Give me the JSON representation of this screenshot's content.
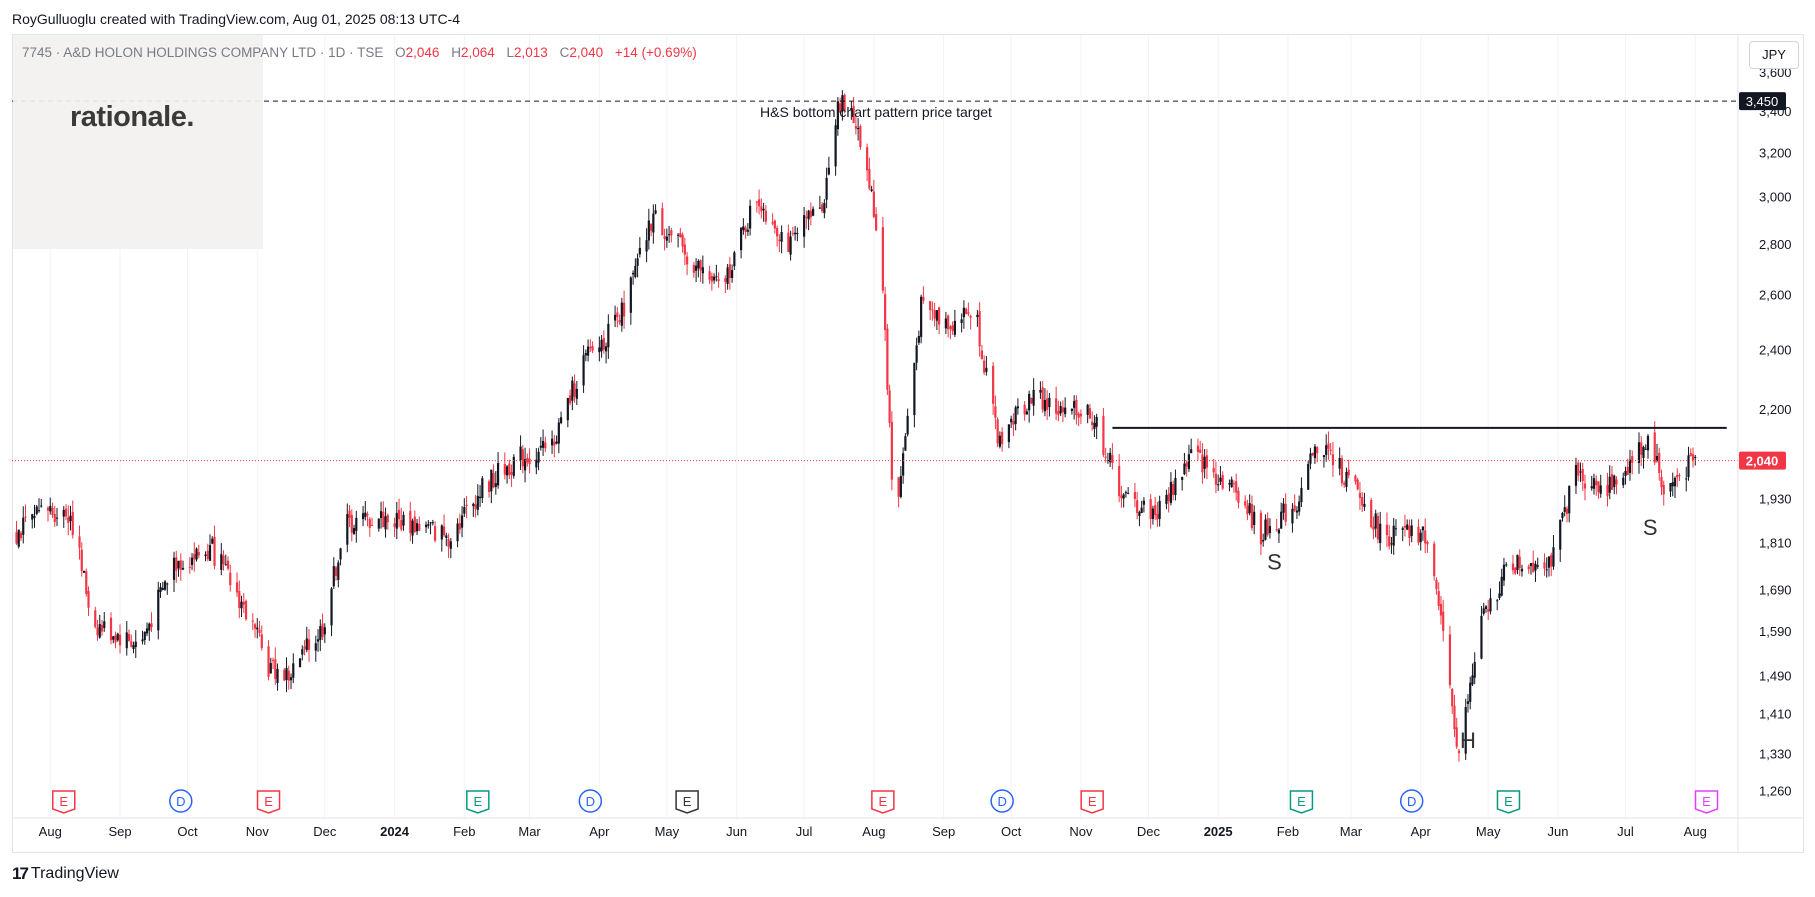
{
  "header": {
    "credit": "RoyGulluoglu created with TradingView.com, Aug 01, 2025 08:13 UTC-4"
  },
  "legend": {
    "symbol": "7745 · A&D HOLON HOLDINGS COMPANY LTD · 1D · TSE",
    "open_label": "O",
    "open": "2,046",
    "high_label": "H",
    "high": "2,064",
    "low_label": "L",
    "low": "2,013",
    "close_label": "C",
    "close": "2,040",
    "change": "+14 (+0.69%)"
  },
  "watermark": {
    "logo_text": "rationale."
  },
  "currency_button": "JPY",
  "footer": {
    "brand": "TradingView",
    "brand_mark": "17"
  },
  "chart_data": {
    "type": "candlestick",
    "y_scale": "log",
    "ylim": [
      1210,
      3800
    ],
    "y_ticks": [
      "3,600",
      "3,400",
      "3,200",
      "3,000",
      "2,800",
      "2,600",
      "2,400",
      "2,200",
      "2,040",
      "1,930",
      "1,810",
      "1,690",
      "1,590",
      "1,490",
      "1,410",
      "1,330",
      "1,260"
    ],
    "x_ticks": [
      "Aug",
      "Sep",
      "Oct",
      "Nov",
      "Dec",
      "2024",
      "Feb",
      "Mar",
      "Apr",
      "May",
      "Jun",
      "Jul",
      "Aug",
      "Sep",
      "Oct",
      "Nov",
      "Dec",
      "2025",
      "Feb",
      "Mar",
      "Apr",
      "May",
      "Jun",
      "Jul",
      "Aug"
    ],
    "x_range": [
      "2023-07-15",
      "2025-08-20"
    ],
    "price_path": [
      [
        "2023-07-15",
        1830
      ],
      [
        "2023-07-31",
        1900
      ],
      [
        "2023-08-10",
        1890
      ],
      [
        "2023-08-20",
        1610
      ],
      [
        "2023-09-10",
        1560
      ],
      [
        "2023-09-25",
        1760
      ],
      [
        "2023-10-12",
        1790
      ],
      [
        "2023-10-25",
        1660
      ],
      [
        "2023-11-06",
        1510
      ],
      [
        "2023-11-15",
        1490
      ],
      [
        "2023-11-30",
        1600
      ],
      [
        "2023-12-10",
        1860
      ],
      [
        "2023-12-25",
        1880
      ],
      [
        "2024-01-10",
        1860
      ],
      [
        "2024-01-25",
        1830
      ],
      [
        "2024-02-10",
        1970
      ],
      [
        "2024-02-25",
        2050
      ],
      [
        "2024-03-10",
        2070
      ],
      [
        "2024-03-25",
        2360
      ],
      [
        "2024-04-10",
        2500
      ],
      [
        "2024-04-25",
        2920
      ],
      [
        "2024-05-10",
        2750
      ],
      [
        "2024-05-25",
        2620
      ],
      [
        "2024-06-10",
        3000
      ],
      [
        "2024-06-25",
        2790
      ],
      [
        "2024-07-10",
        3000
      ],
      [
        "2024-07-16",
        3460
      ],
      [
        "2024-07-25",
        3330
      ],
      [
        "2024-08-01",
        2950
      ],
      [
        "2024-08-05",
        2650
      ],
      [
        "2024-08-10",
        1850
      ],
      [
        "2024-08-22",
        2550
      ],
      [
        "2024-09-05",
        2500
      ],
      [
        "2024-09-15",
        2550
      ],
      [
        "2024-09-25",
        2100
      ],
      [
        "2024-10-10",
        2250
      ],
      [
        "2024-10-25",
        2180
      ],
      [
        "2024-11-05",
        2200
      ],
      [
        "2024-11-20",
        1930
      ],
      [
        "2024-12-05",
        1890
      ],
      [
        "2024-12-20",
        2060
      ],
      [
        "2025-01-10",
        1950
      ],
      [
        "2025-01-20",
        1830
      ],
      [
        "2025-02-05",
        1920
      ],
      [
        "2025-02-15",
        2100
      ],
      [
        "2025-03-01",
        1970
      ],
      [
        "2025-03-15",
        1830
      ],
      [
        "2025-04-05",
        1830
      ],
      [
        "2025-04-10",
        1600
      ],
      [
        "2025-04-18",
        1330
      ],
      [
        "2025-04-28",
        1610
      ],
      [
        "2025-05-10",
        1750
      ],
      [
        "2025-05-30",
        1770
      ],
      [
        "2025-06-08",
        2000
      ],
      [
        "2025-06-25",
        1960
      ],
      [
        "2025-07-12",
        2120
      ],
      [
        "2025-07-18",
        1950
      ],
      [
        "2025-08-01",
        2040
      ]
    ],
    "last_close": 2040,
    "resistance_line": {
      "start": "2024-11-15",
      "end": "2025-08-15",
      "value": 2140
    },
    "price_target": {
      "value": 3450,
      "label": "3,450",
      "text": "H&S bottom chart pattern price target"
    },
    "current_price_label": "2,040",
    "pattern_labels": [
      {
        "text": "S",
        "date": "2025-01-26",
        "value": 1740
      },
      {
        "text": "H",
        "date": "2025-04-22",
        "value": 1340
      },
      {
        "text": "S",
        "date": "2025-07-12",
        "value": 1830
      }
    ],
    "events": [
      {
        "type": "E",
        "date": "2023-08-07",
        "color": "#f23645"
      },
      {
        "type": "D",
        "date": "2023-09-28",
        "color": "#2962ff"
      },
      {
        "type": "E",
        "date": "2023-11-06",
        "color": "#f23645"
      },
      {
        "type": "E",
        "date": "2024-02-07",
        "color": "#089981"
      },
      {
        "type": "D",
        "date": "2024-03-28",
        "color": "#2962ff"
      },
      {
        "type": "E",
        "date": "2024-05-10",
        "color": "#333333"
      },
      {
        "type": "E",
        "date": "2024-08-05",
        "color": "#f23645"
      },
      {
        "type": "D",
        "date": "2024-09-27",
        "color": "#2962ff"
      },
      {
        "type": "E",
        "date": "2024-11-06",
        "color": "#f23645"
      },
      {
        "type": "E",
        "date": "2025-02-07",
        "color": "#089981"
      },
      {
        "type": "D",
        "date": "2025-03-28",
        "color": "#2962ff"
      },
      {
        "type": "E",
        "date": "2025-05-10",
        "color": "#089981"
      },
      {
        "type": "E",
        "date": "2025-08-06",
        "color": "#e040fb"
      }
    ],
    "colors": {
      "up": "#131722",
      "down": "#f23645",
      "grid": "#f0f3fa",
      "price_line": "#f23645"
    }
  }
}
